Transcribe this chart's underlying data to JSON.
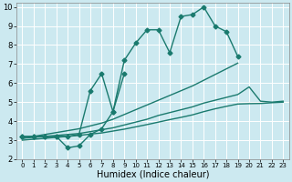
{
  "title": "",
  "xlabel": "Humidex (Indice chaleur)",
  "ylabel": "",
  "bg_color": "#cce9f0",
  "grid_color": "#ffffff",
  "line_color": "#1a7a6e",
  "xlim": [
    -0.5,
    23.5
  ],
  "ylim": [
    2,
    10.2
  ],
  "xticks": [
    0,
    1,
    2,
    3,
    4,
    5,
    6,
    7,
    8,
    9,
    10,
    11,
    12,
    13,
    14,
    15,
    16,
    17,
    18,
    19,
    20,
    21,
    22,
    23
  ],
  "yticks": [
    2,
    3,
    4,
    5,
    6,
    7,
    8,
    9,
    10
  ],
  "series": [
    {
      "x": [
        0,
        1,
        2,
        3,
        4,
        5,
        6,
        7,
        8,
        9,
        10,
        11,
        12,
        13,
        14,
        15,
        16,
        17,
        18,
        19
      ],
      "y": [
        3.2,
        3.2,
        3.2,
        3.2,
        3.2,
        3.3,
        5.6,
        6.5,
        4.5,
        7.2,
        8.1,
        8.8,
        8.8,
        7.6,
        9.5,
        9.6,
        10.0,
        9.0,
        8.7,
        7.4
      ],
      "marker": "D",
      "markersize": 2.5,
      "linewidth": 1.0
    },
    {
      "x": [
        0,
        1,
        2,
        3,
        4,
        5,
        6,
        7,
        8,
        9
      ],
      "y": [
        3.2,
        3.2,
        3.2,
        3.2,
        2.6,
        2.7,
        3.3,
        3.6,
        4.5,
        6.5
      ],
      "marker": "D",
      "markersize": 2.5,
      "linewidth": 1.0
    },
    {
      "x": [
        0,
        1,
        2,
        3,
        4,
        5,
        6,
        7,
        8,
        9,
        10,
        11,
        12,
        13,
        14,
        15,
        16,
        17,
        18,
        19,
        20,
        21,
        22,
        23
      ],
      "y": [
        3.1,
        3.2,
        3.3,
        3.4,
        3.5,
        3.6,
        3.75,
        3.9,
        4.1,
        4.35,
        4.6,
        4.85,
        5.1,
        5.35,
        5.6,
        5.85,
        6.15,
        6.45,
        6.75,
        7.05,
        null,
        null,
        null,
        null
      ],
      "marker": null,
      "markersize": 0,
      "linewidth": 1.0
    },
    {
      "x": [
        0,
        1,
        2,
        3,
        4,
        5,
        6,
        7,
        8,
        9,
        10,
        11,
        12,
        13,
        14,
        15,
        16,
        17,
        18,
        19,
        20,
        21,
        22,
        23
      ],
      "y": [
        3.1,
        3.15,
        3.2,
        3.25,
        3.3,
        3.35,
        3.45,
        3.55,
        3.65,
        3.8,
        3.95,
        4.1,
        4.3,
        4.45,
        4.6,
        4.75,
        4.95,
        5.1,
        5.25,
        5.4,
        5.8,
        5.05,
        5.0,
        5.05
      ],
      "marker": null,
      "markersize": 0,
      "linewidth": 1.0
    },
    {
      "x": [
        0,
        1,
        2,
        3,
        4,
        5,
        6,
        7,
        8,
        9,
        10,
        11,
        12,
        13,
        14,
        15,
        16,
        17,
        18,
        19,
        20,
        21,
        22,
        23
      ],
      "y": [
        3.0,
        3.05,
        3.1,
        3.15,
        3.2,
        3.25,
        3.32,
        3.38,
        3.48,
        3.58,
        3.7,
        3.82,
        3.95,
        4.08,
        4.2,
        4.33,
        4.5,
        4.65,
        4.78,
        4.9,
        4.92,
        4.93,
        4.97,
        5.0
      ],
      "marker": null,
      "markersize": 0,
      "linewidth": 1.0
    }
  ]
}
